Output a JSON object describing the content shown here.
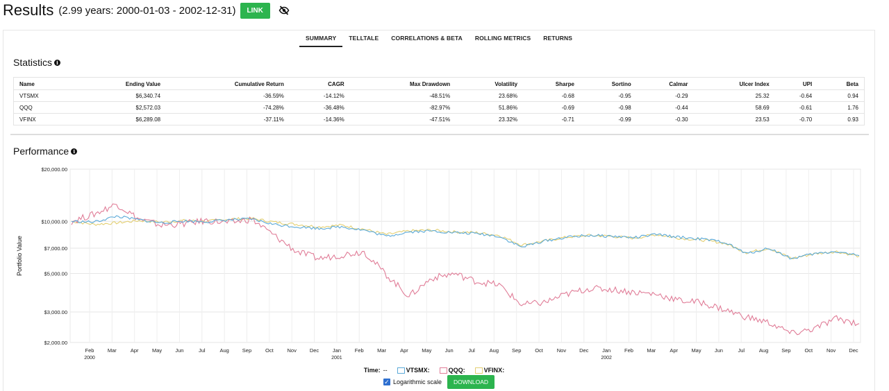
{
  "header": {
    "title": "Results",
    "period": "(2.99 years: 2000-01-03 - 2002-12-31)",
    "link_label": "LINK"
  },
  "tabs": [
    {
      "label": "SUMMARY"
    },
    {
      "label": "TELLTALE"
    },
    {
      "label": "CORRELATIONS & BETA"
    },
    {
      "label": "ROLLING METRICS"
    },
    {
      "label": "RETURNS"
    }
  ],
  "statistics": {
    "title": "Statistics",
    "columns": [
      "Name",
      "Ending Value",
      "Cumulative Return",
      "CAGR",
      "Max Drawdown",
      "Volatility",
      "Sharpe",
      "Sortino",
      "Calmar",
      "Ulcer Index",
      "UPI",
      "Beta"
    ],
    "rows": [
      [
        "VTSMX",
        "$6,340.74",
        "-36.59%",
        "-14.12%",
        "-48.51%",
        "23.68%",
        "-0.68",
        "-0.95",
        "-0.29",
        "25.32",
        "-0.64",
        "0.94"
      ],
      [
        "QQQ",
        "$2,572.03",
        "-74.28%",
        "-36.48%",
        "-82.97%",
        "51.86%",
        "-0.69",
        "-0.98",
        "-0.44",
        "58.69",
        "-0.61",
        "1.76"
      ],
      [
        "VFINX",
        "$6,289.08",
        "-37.11%",
        "-14.36%",
        "-47.51%",
        "23.32%",
        "-0.71",
        "-0.99",
        "-0.30",
        "23.53",
        "-0.70",
        "0.93"
      ]
    ]
  },
  "performance": {
    "title": "Performance",
    "legend_time": "Time:",
    "legend_time_value": "--",
    "log_label": "Logarithmic scale",
    "download_label": "DOWNLOAD"
  },
  "chart_data": {
    "type": "line",
    "ylabel": "Portfolio Value",
    "y_scale": "log",
    "ylim": [
      2000,
      20000
    ],
    "y_ticks": [
      "$20,000.00",
      "$10,000.00",
      "$7,000.00",
      "$5,000.00",
      "$3,000.00",
      "$2,000.00"
    ],
    "y_tick_values": [
      20000,
      10000,
      7000,
      5000,
      3000,
      2000
    ],
    "x_ticks": [
      "Feb",
      "Mar",
      "Apr",
      "May",
      "Jun",
      "Jul",
      "Aug",
      "Sep",
      "Oct",
      "Nov",
      "Dec",
      "Jan",
      "Feb",
      "Mar",
      "Apr",
      "May",
      "Jun",
      "Jul",
      "Aug",
      "Sep",
      "Oct",
      "Nov",
      "Dec",
      "Jan",
      "Feb",
      "Mar",
      "Apr",
      "May",
      "Jun",
      "Jul",
      "Aug",
      "Sep",
      "Oct",
      "Nov",
      "Dec"
    ],
    "x_years": [
      {
        "label": "2000",
        "under": 0
      },
      {
        "label": "2001",
        "under": 11
      },
      {
        "label": "2002",
        "under": 23
      }
    ],
    "x": [
      "2000-01",
      "2000-02",
      "2000-03",
      "2000-04",
      "2000-05",
      "2000-06",
      "2000-07",
      "2000-08",
      "2000-09",
      "2000-10",
      "2000-11",
      "2000-12",
      "2001-01",
      "2001-02",
      "2001-03",
      "2001-04",
      "2001-05",
      "2001-06",
      "2001-07",
      "2001-08",
      "2001-09",
      "2001-10",
      "2001-11",
      "2001-12",
      "2002-01",
      "2002-02",
      "2002-03",
      "2002-04",
      "2002-05",
      "2002-06",
      "2002-07",
      "2002-08",
      "2002-09",
      "2002-10",
      "2002-11",
      "2002-12"
    ],
    "series": [
      {
        "name": "VTSMX",
        "color": "#5aa9d8",
        "values": [
          10000,
          9900,
          10700,
          10200,
          9800,
          10050,
          9950,
          10200,
          10300,
          9600,
          9300,
          9100,
          9300,
          8900,
          8200,
          8700,
          8800,
          8600,
          8500,
          8200,
          7100,
          7700,
          8100,
          8300,
          8200,
          8050,
          8400,
          8100,
          7900,
          7600,
          6500,
          7000,
          6100,
          6500,
          6700,
          6340
        ]
      },
      {
        "name": "QQQ",
        "color": "#e07c97",
        "values": [
          10000,
          11000,
          12600,
          10300,
          9500,
          9700,
          10100,
          9800,
          10300,
          8300,
          6700,
          6100,
          6400,
          6700,
          4900,
          3700,
          4700,
          5000,
          4500,
          4300,
          3300,
          3400,
          3800,
          4100,
          4050,
          3900,
          3800,
          3500,
          3400,
          3100,
          2800,
          2600,
          2250,
          2400,
          2750,
          2572
        ]
      },
      {
        "name": "VFINX",
        "color": "#e3cf72",
        "values": [
          10000,
          9600,
          9800,
          10100,
          9900,
          10100,
          10000,
          10300,
          10400,
          9900,
          9600,
          9300,
          9500,
          9000,
          8400,
          8800,
          8900,
          8700,
          8600,
          8300,
          7300,
          7700,
          8100,
          8300,
          8200,
          8000,
          8400,
          8000,
          7800,
          7500,
          6600,
          7000,
          6100,
          6500,
          6700,
          6289
        ]
      }
    ]
  }
}
